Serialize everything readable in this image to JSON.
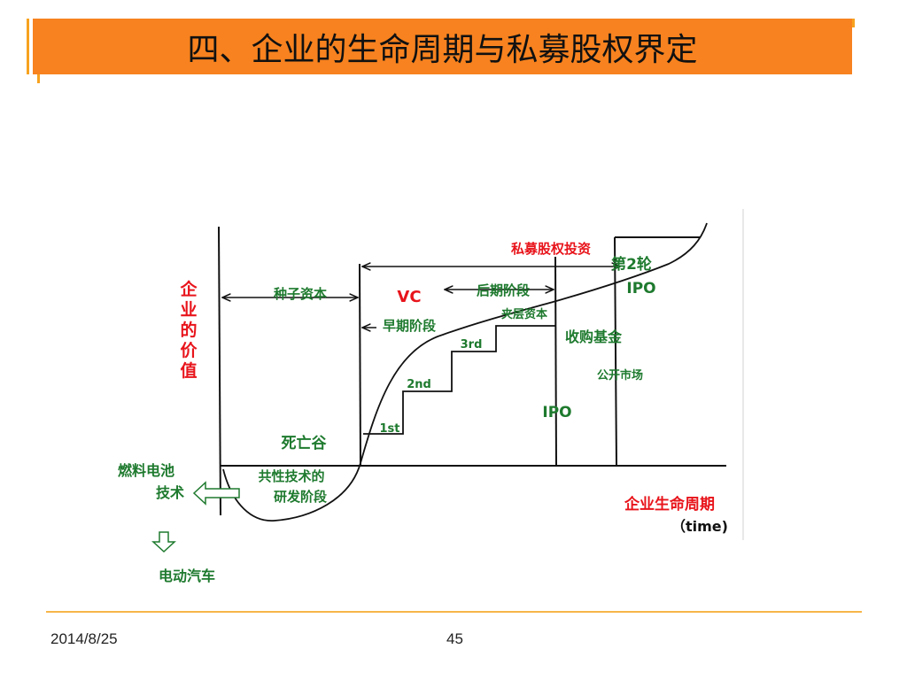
{
  "slide": {
    "title": "四、企业的生命周期与私募股权界定"
  },
  "diagram": {
    "y_axis_label": [
      "企",
      "业",
      "的",
      "价",
      "值"
    ],
    "x_axis_label": "企业生命周期",
    "x_axis_sublabel": "（time)",
    "phases": {
      "seed": "种子资本",
      "vc": "VC",
      "early": "早期阶段",
      "late": "后期阶段",
      "mezzanine": "夹层资本",
      "pe": "私募股权投资",
      "buyout": "收购基金",
      "public_market": "公开市场",
      "second_ipo_line1": "第2轮",
      "second_ipo_line2": "IPO",
      "ipo": "IPO"
    },
    "rounds": [
      "1st",
      "2nd",
      "3rd"
    ],
    "death_valley": "死亡谷",
    "common_tech": [
      "共性技术的",
      "研发阶段"
    ],
    "fuel_cell": [
      "燃料电池",
      "技术"
    ],
    "electric_vehicle": "电动汽车"
  },
  "colors": {
    "title_bar": "#f7821f",
    "green_label": "#1e7a2e",
    "red_label": "#e8141b",
    "line": "#111111"
  },
  "footer": {
    "date": "2014/8/25",
    "page_number": "45"
  }
}
